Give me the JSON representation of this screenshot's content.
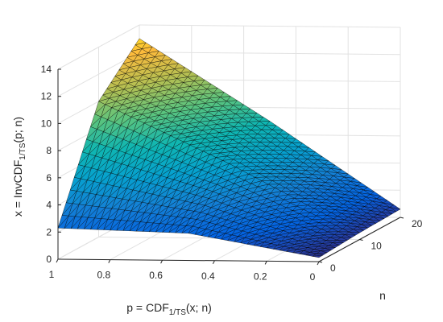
{
  "chart_data": {
    "type": "surface",
    "colormap": "parula",
    "grid": true,
    "edge_color": "#000000",
    "x_axis": {
      "label_main": "p = CDF",
      "label_sub": "1/TS",
      "label_tail": "(x; n)",
      "range": [
        0,
        1
      ],
      "reversed": true,
      "ticks": [
        1,
        0.8,
        0.6,
        0.4,
        0.2,
        0
      ],
      "tick_labels": [
        "1",
        "0.8",
        "0.6",
        "0.4",
        "0.2",
        "0"
      ]
    },
    "y_axis": {
      "label": "n",
      "range": [
        0,
        20
      ],
      "ticks": [
        0,
        10,
        20
      ],
      "tick_labels": [
        "0",
        "10",
        "20"
      ]
    },
    "z_axis": {
      "label_main": "x = InvCDF",
      "label_sub": "1/TS",
      "label_tail": "(p; n)",
      "range": [
        0,
        14
      ],
      "ticks": [
        0,
        2,
        4,
        6,
        8,
        10,
        12,
        14
      ],
      "tick_labels": [
        "0",
        "2",
        "4",
        "6",
        "8",
        "10",
        "12",
        "14"
      ]
    },
    "surface_samples": {
      "p": [
        0.0,
        0.5,
        1.0
      ],
      "n": [
        0,
        10,
        20
      ],
      "x": [
        [
          0.3,
          0.5,
          0.6
        ],
        [
          2.0,
          5.5,
          7.0
        ],
        [
          2.3,
          10.0,
          13.0
        ]
      ]
    }
  }
}
